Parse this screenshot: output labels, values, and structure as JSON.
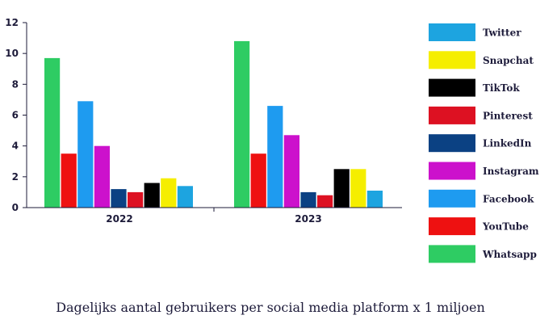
{
  "chart_data": {
    "type": "bar",
    "title": "Dagelijks aantal gebruikers per social media platform x 1 miljoen",
    "xlabel": "",
    "ylabel": "",
    "ylim": [
      0,
      12
    ],
    "yticks": [
      0,
      2,
      4,
      6,
      8,
      10,
      12
    ],
    "categories": [
      "2022",
      "2023"
    ],
    "series": [
      {
        "name": "Whatsapp",
        "color": "#2ecc63",
        "values": [
          9.7,
          10.8
        ]
      },
      {
        "name": "YouTube",
        "color": "#ee1111",
        "values": [
          3.5,
          3.5
        ]
      },
      {
        "name": "Facebook",
        "color": "#1e9bf0",
        "values": [
          6.9,
          6.6
        ]
      },
      {
        "name": "Instagram",
        "color": "#cc11cc",
        "values": [
          4.0,
          4.7
        ]
      },
      {
        "name": "LinkedIn",
        "color": "#0b4183",
        "values": [
          1.2,
          1.0
        ]
      },
      {
        "name": "Pinterest",
        "color": "#dd1122",
        "values": [
          1.0,
          0.8
        ]
      },
      {
        "name": "TikTok",
        "color": "#000000",
        "values": [
          1.6,
          2.5
        ]
      },
      {
        "name": "Snapchat",
        "color": "#f5ee00",
        "values": [
          1.9,
          2.5
        ]
      },
      {
        "name": "Twitter",
        "color": "#1da4e0",
        "values": [
          1.4,
          1.1
        ]
      }
    ],
    "legend_order": [
      "Twitter",
      "Snapchat",
      "TikTok",
      "Pinterest",
      "LinkedIn",
      "Instagram",
      "Facebook",
      "YouTube",
      "Whatsapp"
    ],
    "legend_position": "right"
  }
}
